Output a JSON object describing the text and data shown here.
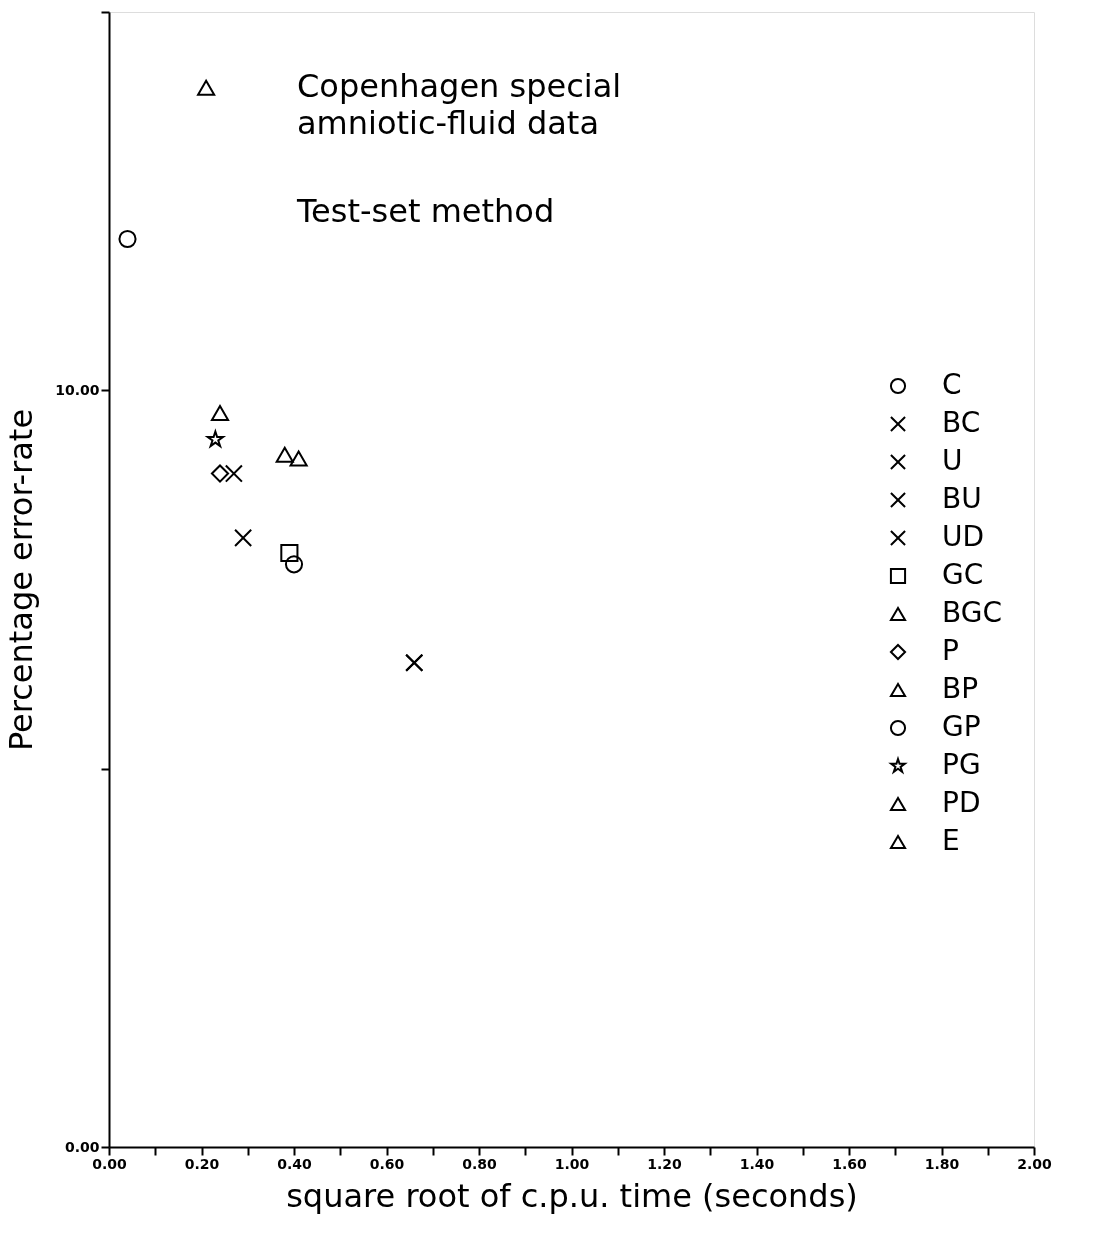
{
  "chart_data": {
    "type": "scatter",
    "xlabel": "square root of c.p.u. time (seconds)",
    "ylabel": "Percentage error-rate",
    "annotations": [
      "Copenhagen special",
      "amniotic-fluid data",
      "Test-set method"
    ],
    "xlim": [
      0,
      2
    ],
    "ylim": [
      0,
      15
    ],
    "xticks": [
      {
        "value": 0,
        "label": "0.00"
      },
      {
        "value": 0.1,
        "label": null
      },
      {
        "value": 0.2,
        "label": "0.20"
      },
      {
        "value": 0.3,
        "label": null
      },
      {
        "value": 0.4,
        "label": "0.40"
      },
      {
        "value": 0.5,
        "label": null
      },
      {
        "value": 0.6,
        "label": "0.60"
      },
      {
        "value": 0.7,
        "label": null
      },
      {
        "value": 0.8,
        "label": "0.80"
      },
      {
        "value": 0.9,
        "label": null
      },
      {
        "value": 1.0,
        "label": "1.00"
      },
      {
        "value": 1.1,
        "label": null
      },
      {
        "value": 1.2,
        "label": "1.20"
      },
      {
        "value": 1.3,
        "label": null
      },
      {
        "value": 1.4,
        "label": "1.40"
      },
      {
        "value": 1.5,
        "label": null
      },
      {
        "value": 1.6,
        "label": "1.60"
      },
      {
        "value": 1.7,
        "label": null
      },
      {
        "value": 1.8,
        "label": "1.80"
      },
      {
        "value": 1.9,
        "label": null
      },
      {
        "value": 2.0,
        "label": "2.00"
      }
    ],
    "yticks": [
      {
        "value": 0,
        "label": "0.00"
      },
      {
        "value": 5,
        "label": null
      },
      {
        "value": 10,
        "label": "10.00"
      },
      {
        "value": 15,
        "label": null
      }
    ],
    "grid": false,
    "legend": "right",
    "series": [
      {
        "name": "C",
        "color": "#000000",
        "marker": "circle",
        "x": [
          0.04
        ],
        "values": [
          12.0
        ]
      },
      {
        "name": "BC",
        "color": "#000000",
        "marker": "cross",
        "x": [
          0.27
        ],
        "values": [
          8.9
        ]
      },
      {
        "name": "U",
        "color": "#000000",
        "marker": "cross",
        "x": [
          0.66
        ],
        "values": [
          6.4
        ]
      },
      {
        "name": "BU",
        "color": "#000000",
        "marker": "cross",
        "x": [
          0.66
        ],
        "values": [
          6.4
        ]
      },
      {
        "name": "UD",
        "color": "#000000",
        "marker": "cross",
        "x": [
          0.29
        ],
        "values": [
          8.05
        ]
      },
      {
        "name": "GC",
        "color": "#000000",
        "marker": "square",
        "x": [
          0.39
        ],
        "values": [
          7.85
        ]
      },
      {
        "name": "BGC",
        "color": "#000000",
        "marker": "triangle",
        "x": [
          0.41
        ],
        "values": [
          9.1
        ]
      },
      {
        "name": "P",
        "color": "#000000",
        "marker": "diamond",
        "x": [
          0.24
        ],
        "values": [
          8.9
        ]
      },
      {
        "name": "BP",
        "color": "#000000",
        "marker": "triangle",
        "x": [
          0.24
        ],
        "values": [
          9.7
        ]
      },
      {
        "name": "GP",
        "color": "#000000",
        "marker": "circle",
        "x": [
          0.4
        ],
        "values": [
          7.7
        ]
      },
      {
        "name": "PG",
        "color": "#000000",
        "marker": "star",
        "x": [
          0.23
        ],
        "values": [
          9.35
        ]
      },
      {
        "name": "PD",
        "color": "#000000",
        "marker": "triangle",
        "x": [
          0.21
        ],
        "values": [
          14.0
        ]
      },
      {
        "name": "E",
        "color": "#000000",
        "marker": "triangle",
        "x": [
          0.38
        ],
        "values": [
          9.15
        ]
      }
    ]
  }
}
